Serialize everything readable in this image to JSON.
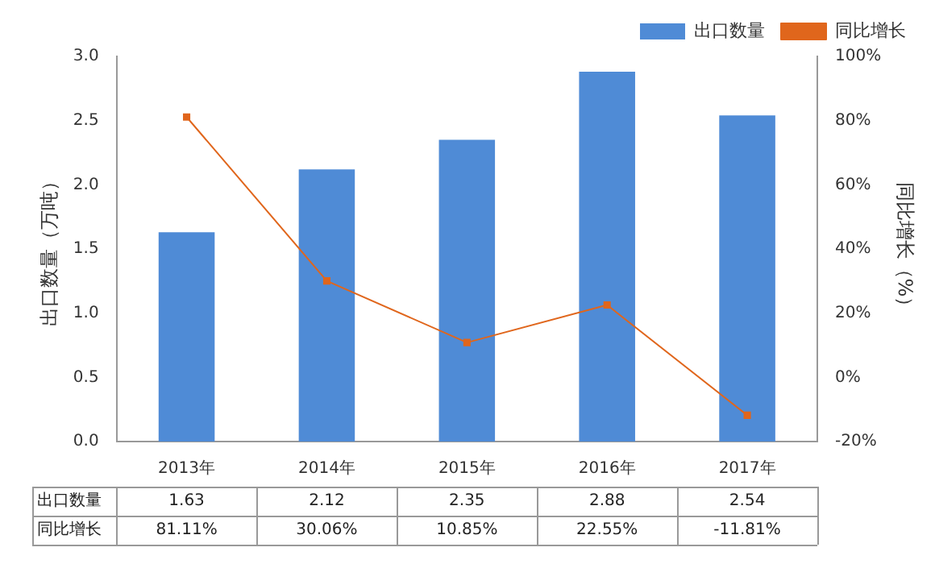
{
  "chart_data": {
    "type": "bar",
    "categories": [
      "2013年",
      "2014年",
      "2015年",
      "2016年",
      "2017年"
    ],
    "ylabel": "出口数量（万吨）",
    "y2label": "同比增长（%）",
    "series": [
      {
        "name": "出口数量",
        "color": "#4f8bd6",
        "values": [
          1.63,
          2.12,
          2.35,
          2.88,
          2.54
        ],
        "value_labels": [
          "1.63",
          "2.12",
          "2.35",
          "2.88",
          "2.54"
        ]
      },
      {
        "name": "同比增长",
        "type": "line",
        "axis": "y2",
        "color": "#e0661c",
        "values": [
          81.11,
          30.06,
          10.85,
          22.55,
          -11.81
        ],
        "value_labels": [
          "81.11%",
          "30.06%",
          "10.85%",
          "22.55%",
          "-11.81%"
        ]
      }
    ],
    "ylim": [
      0,
      3
    ],
    "yticks": [
      {
        "value": 0,
        "label": "0.0"
      },
      {
        "value": 0.5,
        "label": "0.5"
      },
      {
        "value": 1,
        "label": "1.0"
      },
      {
        "value": 1.5,
        "label": "1.5"
      },
      {
        "value": 2,
        "label": "2.0"
      },
      {
        "value": 2.5,
        "label": "2.5"
      },
      {
        "value": 3,
        "label": "3.0"
      }
    ],
    "y2lim": [
      -20,
      100
    ],
    "y2ticks": [
      {
        "value": -20,
        "label": "-20%"
      },
      {
        "value": 0,
        "label": "0%"
      },
      {
        "value": 20,
        "label": "20%"
      },
      {
        "value": 40,
        "label": "40%"
      },
      {
        "value": 60,
        "label": "60%"
      },
      {
        "value": 80,
        "label": "80%"
      },
      {
        "value": 100,
        "label": "100%"
      }
    ],
    "legend": "top right",
    "marker": "square",
    "line_style": "solid"
  }
}
